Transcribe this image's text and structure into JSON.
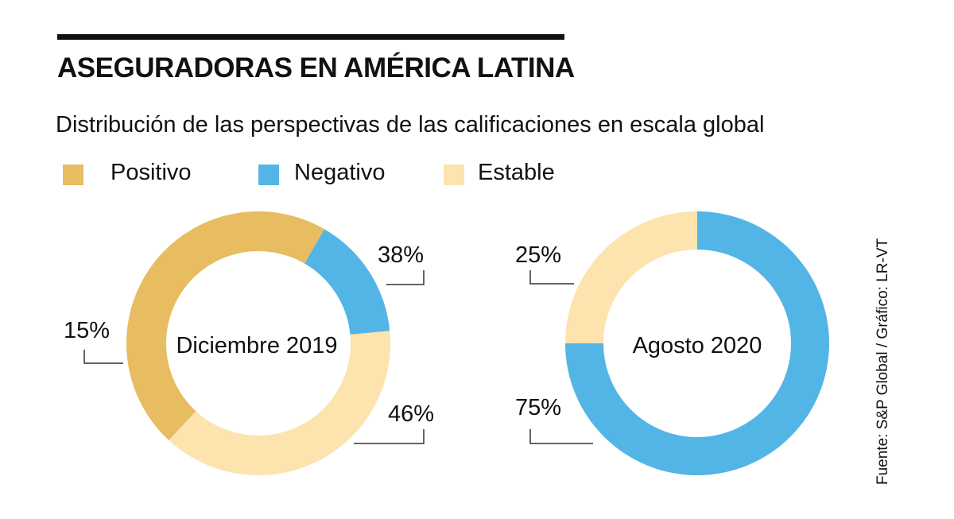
{
  "title": "ASEGURADORAS EN AMÉRICA LATINA",
  "subtitle": "Distribución de las perspectivas de las calificaciones en escala global",
  "source": "Fuente: S&P Global / Gráfico: LR-VT",
  "colors": {
    "Positivo": "#e8bc60",
    "Negativo": "#53b5e6",
    "Estable": "#fde3ae"
  },
  "chart_data": [
    {
      "type": "pie",
      "donut": true,
      "center_label": "Diciembre 2019",
      "legend": [
        "Positivo",
        "Negativo",
        "Estable"
      ],
      "legend_placement": "top",
      "segments": [
        {
          "name": "Negativo",
          "value": 15
        },
        {
          "name": "Estable",
          "value": 38
        },
        {
          "name": "Positivo",
          "value": 46
        }
      ],
      "data_labels": [
        "38%",
        "15%",
        "46%"
      ]
    },
    {
      "type": "pie",
      "donut": true,
      "center_label": "Agosto 2020",
      "segments": [
        {
          "name": "Negativo",
          "value": 75
        },
        {
          "name": "Estable",
          "value": 25
        }
      ],
      "data_labels": [
        "25%",
        "75%"
      ]
    }
  ]
}
